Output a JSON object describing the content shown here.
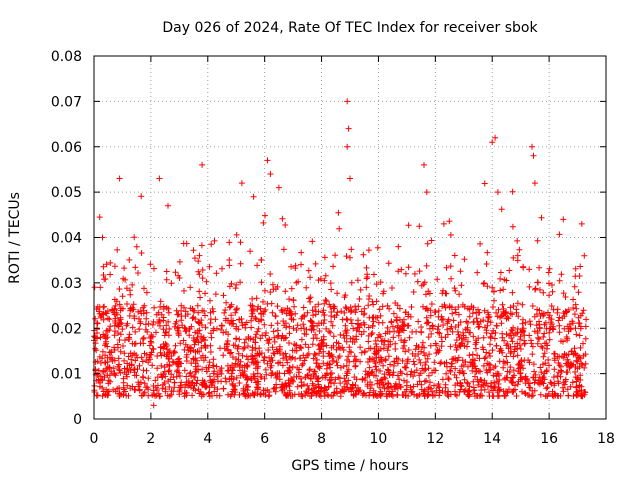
{
  "chart_data": {
    "type": "scatter",
    "title": "Day 026 of 2024, Rate Of TEC Index for receiver sbok",
    "xlabel": "GPS time / hours",
    "ylabel": "ROTI / TECUs",
    "xlim": [
      0,
      18
    ],
    "ylim": [
      0,
      0.08
    ],
    "xticks": [
      0,
      2,
      4,
      6,
      8,
      10,
      12,
      14,
      16,
      18
    ],
    "xtick_labels": [
      "0",
      "2",
      "4",
      "6",
      "8",
      "10",
      "12",
      "14",
      "16",
      "18"
    ],
    "yticks": [
      0,
      0.01,
      0.02,
      0.03,
      0.04,
      0.05,
      0.06,
      0.07,
      0.08
    ],
    "ytick_labels": [
      "0",
      "0.01",
      "0.02",
      "0.03",
      "0.04",
      "0.05",
      "0.06",
      "0.07",
      "0.08"
    ],
    "grid": true,
    "marker": "+",
    "series_color": "#ff0000",
    "series": [
      {
        "name": "ROTI",
        "x_range": [
          0,
          17.3
        ],
        "typical_range": [
          0.005,
          0.025
        ],
        "notable_points": [
          {
            "x": 0.9,
            "y": 0.053
          },
          {
            "x": 2.3,
            "y": 0.053
          },
          {
            "x": 2.6,
            "y": 0.047
          },
          {
            "x": 3.8,
            "y": 0.056
          },
          {
            "x": 5.2,
            "y": 0.052
          },
          {
            "x": 6.1,
            "y": 0.057
          },
          {
            "x": 6.2,
            "y": 0.054
          },
          {
            "x": 6.5,
            "y": 0.051
          },
          {
            "x": 8.9,
            "y": 0.07
          },
          {
            "x": 8.95,
            "y": 0.064
          },
          {
            "x": 8.9,
            "y": 0.06
          },
          {
            "x": 9.0,
            "y": 0.053
          },
          {
            "x": 11.6,
            "y": 0.056
          },
          {
            "x": 11.7,
            "y": 0.05
          },
          {
            "x": 12.3,
            "y": 0.043
          },
          {
            "x": 14.1,
            "y": 0.062
          },
          {
            "x": 14.0,
            "y": 0.061
          },
          {
            "x": 14.2,
            "y": 0.05
          },
          {
            "x": 15.4,
            "y": 0.06
          },
          {
            "x": 15.45,
            "y": 0.058
          },
          {
            "x": 15.5,
            "y": 0.052
          },
          {
            "x": 16.5,
            "y": 0.044
          },
          {
            "x": 8.8,
            "y": 0.009
          },
          {
            "x": 2.1,
            "y": 0.003
          },
          {
            "x": 0.3,
            "y": 0.04
          }
        ]
      }
    ]
  }
}
